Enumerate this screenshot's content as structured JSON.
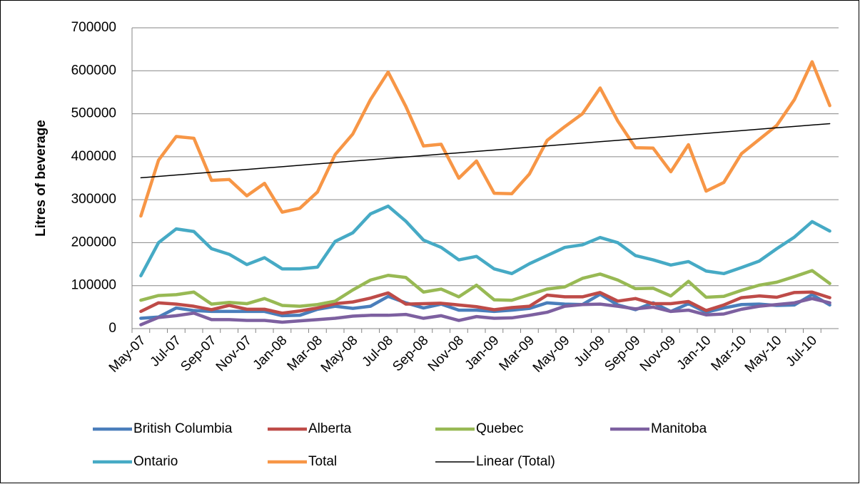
{
  "chart_data": {
    "type": "line",
    "y_label": "Litres of beverage",
    "categories": [
      "May-07",
      null,
      "Jul-07",
      null,
      "Sep-07",
      null,
      "Nov-07",
      null,
      "Jan-08",
      null,
      "Mar-08",
      null,
      "May-08",
      null,
      "Jul-08",
      null,
      "Sep-08",
      null,
      "Nov-08",
      null,
      "Jan-09",
      null,
      "Mar-09",
      null,
      "May-09",
      null,
      "Jul-09",
      null,
      "Sep-09",
      null,
      "Nov-09",
      null,
      "Jan-10",
      null,
      "Mar-10",
      null,
      "May-10",
      null,
      "Jul-10",
      null
    ],
    "series": [
      {
        "name": "British Columbia",
        "color": "#4a7ebb",
        "values": [
          24000,
          27000,
          48000,
          42000,
          40000,
          40000,
          40000,
          40000,
          30000,
          31000,
          45000,
          52000,
          47000,
          52000,
          75000,
          60000,
          48000,
          57000,
          43000,
          43000,
          40000,
          43000,
          47000,
          60000,
          57000,
          56000,
          80000,
          55000,
          44000,
          60000,
          40000,
          58000,
          38000,
          48000,
          56000,
          57000,
          54000,
          55000,
          79000,
          55000
        ]
      },
      {
        "name": "Alberta",
        "color": "#be4b48",
        "values": [
          40000,
          60000,
          57000,
          52000,
          44000,
          54000,
          45000,
          45000,
          36000,
          41000,
          48000,
          58000,
          62000,
          71000,
          83000,
          57000,
          58000,
          59000,
          55000,
          51000,
          44000,
          49000,
          52000,
          78000,
          74000,
          74000,
          84000,
          64000,
          70000,
          58000,
          58000,
          63000,
          42000,
          55000,
          72000,
          76000,
          73000,
          84000,
          85000,
          72000
        ]
      },
      {
        "name": "Quebec",
        "color": "#98b954",
        "values": [
          66000,
          77000,
          79000,
          85000,
          57000,
          61000,
          58000,
          70000,
          54000,
          52000,
          56000,
          64000,
          90000,
          113000,
          124000,
          119000,
          85000,
          92000,
          74000,
          101000,
          67000,
          66000,
          79000,
          92000,
          97000,
          117000,
          127000,
          113000,
          93000,
          94000,
          76000,
          110000,
          73000,
          75000,
          89000,
          101000,
          108000,
          121000,
          135000,
          105000
        ]
      },
      {
        "name": "Manitoba",
        "color": "#7d60a0",
        "values": [
          9000,
          26000,
          30000,
          36000,
          21000,
          21000,
          19000,
          19000,
          15000,
          18000,
          21000,
          24000,
          29000,
          31000,
          31000,
          33000,
          24000,
          30000,
          19000,
          28000,
          24000,
          25000,
          31000,
          38000,
          52000,
          56000,
          57000,
          52000,
          46000,
          50000,
          40000,
          43000,
          32000,
          34000,
          45000,
          52000,
          56000,
          60000,
          70000,
          60000
        ]
      },
      {
        "name": "Ontario",
        "color": "#46aac5",
        "values": [
          123000,
          200000,
          232000,
          226000,
          186000,
          173000,
          149000,
          165000,
          139000,
          139000,
          143000,
          203000,
          223000,
          267000,
          285000,
          250000,
          206000,
          189000,
          160000,
          168000,
          139000,
          128000,
          151000,
          170000,
          189000,
          195000,
          212000,
          200000,
          170000,
          160000,
          148000,
          156000,
          134000,
          128000,
          142000,
          157000,
          186000,
          213000,
          249000,
          227000
        ]
      },
      {
        "name": "Total",
        "color": "#f79646",
        "values": [
          262000,
          392000,
          447000,
          443000,
          345000,
          347000,
          309000,
          338000,
          271000,
          280000,
          318000,
          405000,
          453000,
          533000,
          597000,
          517000,
          425000,
          429000,
          350000,
          390000,
          315000,
          314000,
          360000,
          438000,
          470000,
          500000,
          560000,
          483000,
          421000,
          420000,
          365000,
          428000,
          320000,
          340000,
          407000,
          440000,
          473000,
          533000,
          621000,
          519000
        ]
      },
      {
        "name": "Linear (Total)",
        "color": "#000000",
        "trendline": true,
        "values": [
          351000,
          354230,
          357460,
          360690,
          363920,
          367150,
          370380,
          373610,
          376840,
          380070,
          383300,
          386530,
          389760,
          392990,
          396220,
          399450,
          402680,
          405910,
          409140,
          412370,
          415600,
          418830,
          422060,
          425290,
          428520,
          431750,
          434980,
          438210,
          441440,
          444670,
          447900,
          451130,
          454360,
          457590,
          460820,
          464050,
          467280,
          470510,
          473740,
          476970
        ]
      }
    ],
    "ylim": [
      0,
      700000
    ],
    "yticks": [
      0,
      100000,
      200000,
      300000,
      400000,
      500000,
      600000,
      700000
    ],
    "grid": true,
    "legend": "bottom"
  }
}
